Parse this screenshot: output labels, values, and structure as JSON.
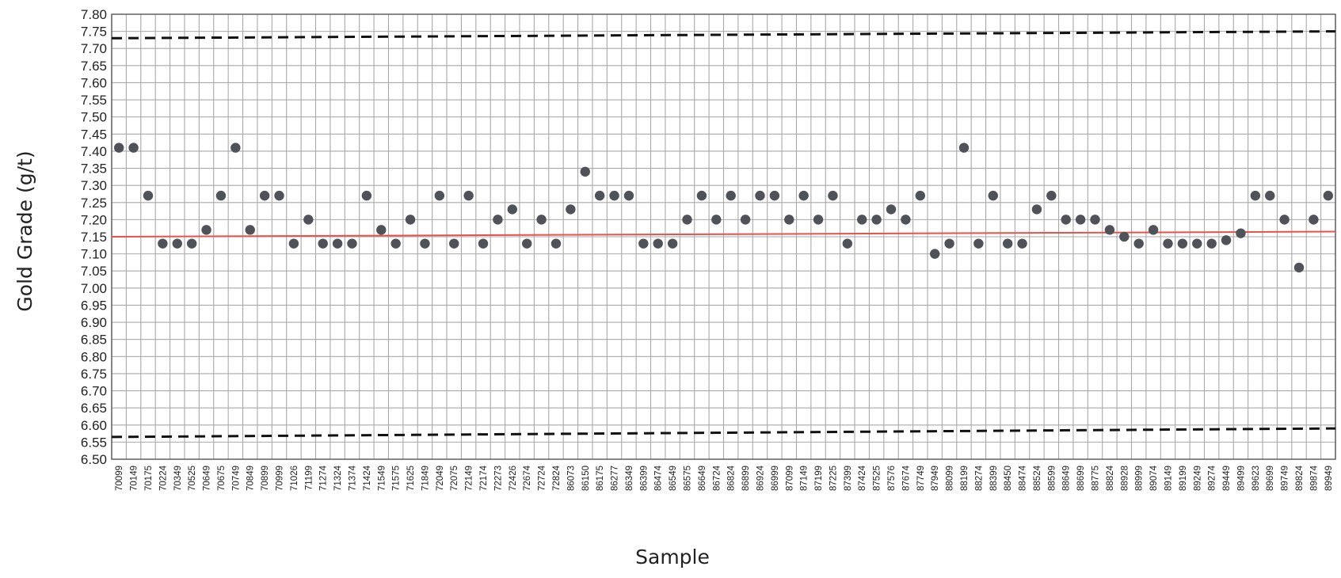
{
  "chart_data": {
    "type": "scatter",
    "title": "",
    "xlabel": "Sample",
    "ylabel": "Gold Grade (g/t)",
    "ylim": [
      6.5,
      7.8
    ],
    "ytick_step": 0.05,
    "grid": true,
    "categories": [
      "70099",
      "70149",
      "70175",
      "70224",
      "70349",
      "70525",
      "70649",
      "70675",
      "70749",
      "70849",
      "70899",
      "70999",
      "71026",
      "71199",
      "71274",
      "71324",
      "71374",
      "71424",
      "71549",
      "71575",
      "71625",
      "71849",
      "72049",
      "72075",
      "72149",
      "72174",
      "72273",
      "72426",
      "72674",
      "72724",
      "72824",
      "86073",
      "86150",
      "86175",
      "86277",
      "86349",
      "86399",
      "86474",
      "86549",
      "86575",
      "86649",
      "86724",
      "86824",
      "86899",
      "86924",
      "86999",
      "87099",
      "87149",
      "87199",
      "87225",
      "87399",
      "87424",
      "87525",
      "87576",
      "87674",
      "87749",
      "87949",
      "88099",
      "88199",
      "88274",
      "88399",
      "88450",
      "88474",
      "88524",
      "88599",
      "88649",
      "88699",
      "88775",
      "88824",
      "88928",
      "88999",
      "89074",
      "89149",
      "89199",
      "89249",
      "89274",
      "89449",
      "89499",
      "89623",
      "89699",
      "89749",
      "89824",
      "89874",
      "89949"
    ],
    "series": [
      {
        "values": [
          7.41,
          7.41,
          7.27,
          7.13,
          7.13,
          7.13,
          7.17,
          7.27,
          7.41,
          7.17,
          7.27,
          7.27,
          7.13,
          7.2,
          7.13,
          7.13,
          7.13,
          7.27,
          7.17,
          7.13,
          7.2,
          7.13,
          7.27,
          7.13,
          7.27,
          7.13,
          7.2,
          7.23,
          7.13,
          7.2,
          7.13,
          7.23,
          7.34,
          7.27,
          7.27,
          7.27,
          7.13,
          7.13,
          7.13,
          7.2,
          7.27,
          7.2,
          7.27,
          7.2,
          7.27,
          7.27,
          7.2,
          7.27,
          7.2,
          7.27,
          7.13,
          7.2,
          7.2,
          7.23,
          7.2,
          7.27,
          7.1,
          7.13,
          7.41,
          7.13,
          7.27,
          7.13,
          7.13,
          7.23,
          7.27,
          7.2,
          7.2,
          7.2,
          7.17,
          7.15,
          7.13,
          7.17,
          7.13,
          7.13,
          7.13,
          7.13,
          7.14,
          7.16,
          7.27,
          7.27,
          7.2,
          7.06,
          7.2,
          7.27
        ]
      }
    ],
    "reference_lines": [
      {
        "style": "solid",
        "color": "#e8524a",
        "y_start": 7.15,
        "y_end": 7.165
      },
      {
        "style": "dashed",
        "color": "#111111",
        "y_start": 7.73,
        "y_end": 7.75
      },
      {
        "style": "dashed",
        "color": "#111111",
        "y_start": 6.565,
        "y_end": 6.59
      }
    ],
    "marker_color": "#4f5258"
  }
}
